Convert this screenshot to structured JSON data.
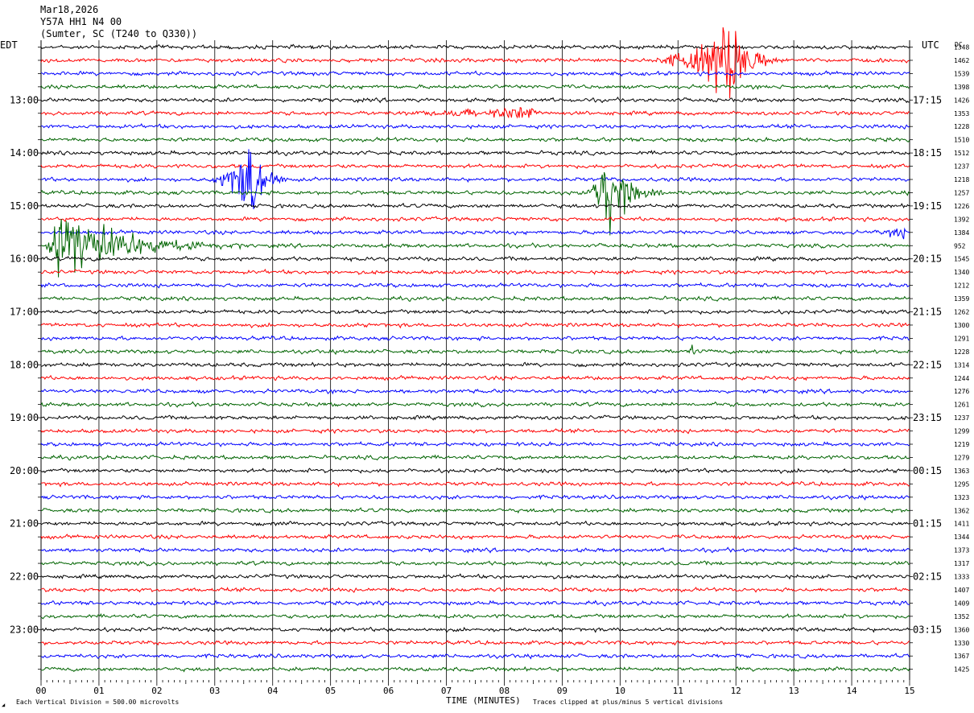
{
  "header": {
    "date": "Mar18,2026",
    "station": "Y57A HH1 N4 00",
    "location": "(Sumter, SC (T240 to Q330))"
  },
  "left_axis_label": "EDT",
  "right_axis_label": "UTC",
  "dc_label": "DC",
  "footer": {
    "scale_note": "Each Vertical Division =  500.00 microvolts",
    "xlabel": "TIME (MINUTES)",
    "clip_note": "Traces clipped at plus/minus 5 vertical divisions"
  },
  "colors": {
    "trace_cycle": [
      "#000000",
      "#ff0000",
      "#0000ff",
      "#006400"
    ],
    "grid": "#000000",
    "background": "#ffffff"
  },
  "chart_data": {
    "type": "line",
    "plot_kind": "helicorder",
    "minutes_per_line": 15,
    "x_ticks": [
      "00",
      "01",
      "02",
      "03",
      "04",
      "05",
      "06",
      "07",
      "08",
      "09",
      "10",
      "11",
      "12",
      "13",
      "14",
      "15"
    ],
    "xlim": [
      0,
      15
    ],
    "edt_hour_labels": [
      "13:00",
      "14:00",
      "15:00",
      "16:00",
      "17:00",
      "18:00",
      "19:00",
      "20:00",
      "21:00",
      "22:00",
      "23:00"
    ],
    "utc_hour_labels": [
      "17:15",
      "18:15",
      "19:15",
      "20:15",
      "21:15",
      "22:15",
      "23:15",
      "00:15",
      "01:15",
      "02:15",
      "03:15"
    ],
    "dc_offsets": [
      1348,
      1462,
      1539,
      1398,
      1426,
      1353,
      1228,
      1510,
      1512,
      1237,
      1218,
      1257,
      1226,
      1392,
      1384,
      952,
      1545,
      1340,
      1212,
      1359,
      1262,
      1300,
      1291,
      1228,
      1314,
      1244,
      1276,
      1261,
      1237,
      1299,
      1219,
      1279,
      1363,
      1295,
      1323,
      1362,
      1411,
      1344,
      1373,
      1317,
      1333,
      1407,
      1409,
      1352,
      1360,
      1330,
      1367,
      1425
    ],
    "events": [
      {
        "line": 1,
        "start_min": 10.3,
        "end_min": 12.8,
        "peak_min": 11.9,
        "amplitude_div": 5
      },
      {
        "line": 5,
        "start_min": 5.2,
        "end_min": 8.8,
        "peak_min": 8.5,
        "amplitude_div": 0.8
      },
      {
        "line": 10,
        "start_min": 2.8,
        "end_min": 4.3,
        "peak_min": 3.7,
        "amplitude_div": 5
      },
      {
        "line": 11,
        "start_min": 9.3,
        "end_min": 10.8,
        "peak_min": 9.8,
        "amplitude_div": 5
      },
      {
        "line": 15,
        "start_min": 0.0,
        "end_min": 3.5,
        "peak_min": 0.3,
        "amplitude_div": 5
      },
      {
        "line": 14,
        "start_min": 14.2,
        "end_min": 15.0,
        "peak_min": 14.9,
        "amplitude_div": 0.8
      },
      {
        "line": 23,
        "start_min": 11.1,
        "end_min": 11.4,
        "peak_min": 11.25,
        "amplitude_div": 0.6
      },
      {
        "line": 36,
        "start_min": 4.0,
        "end_min": 4.2,
        "peak_min": 4.1,
        "amplitude_div": 0.6
      }
    ],
    "clip_divisions": 5
  }
}
